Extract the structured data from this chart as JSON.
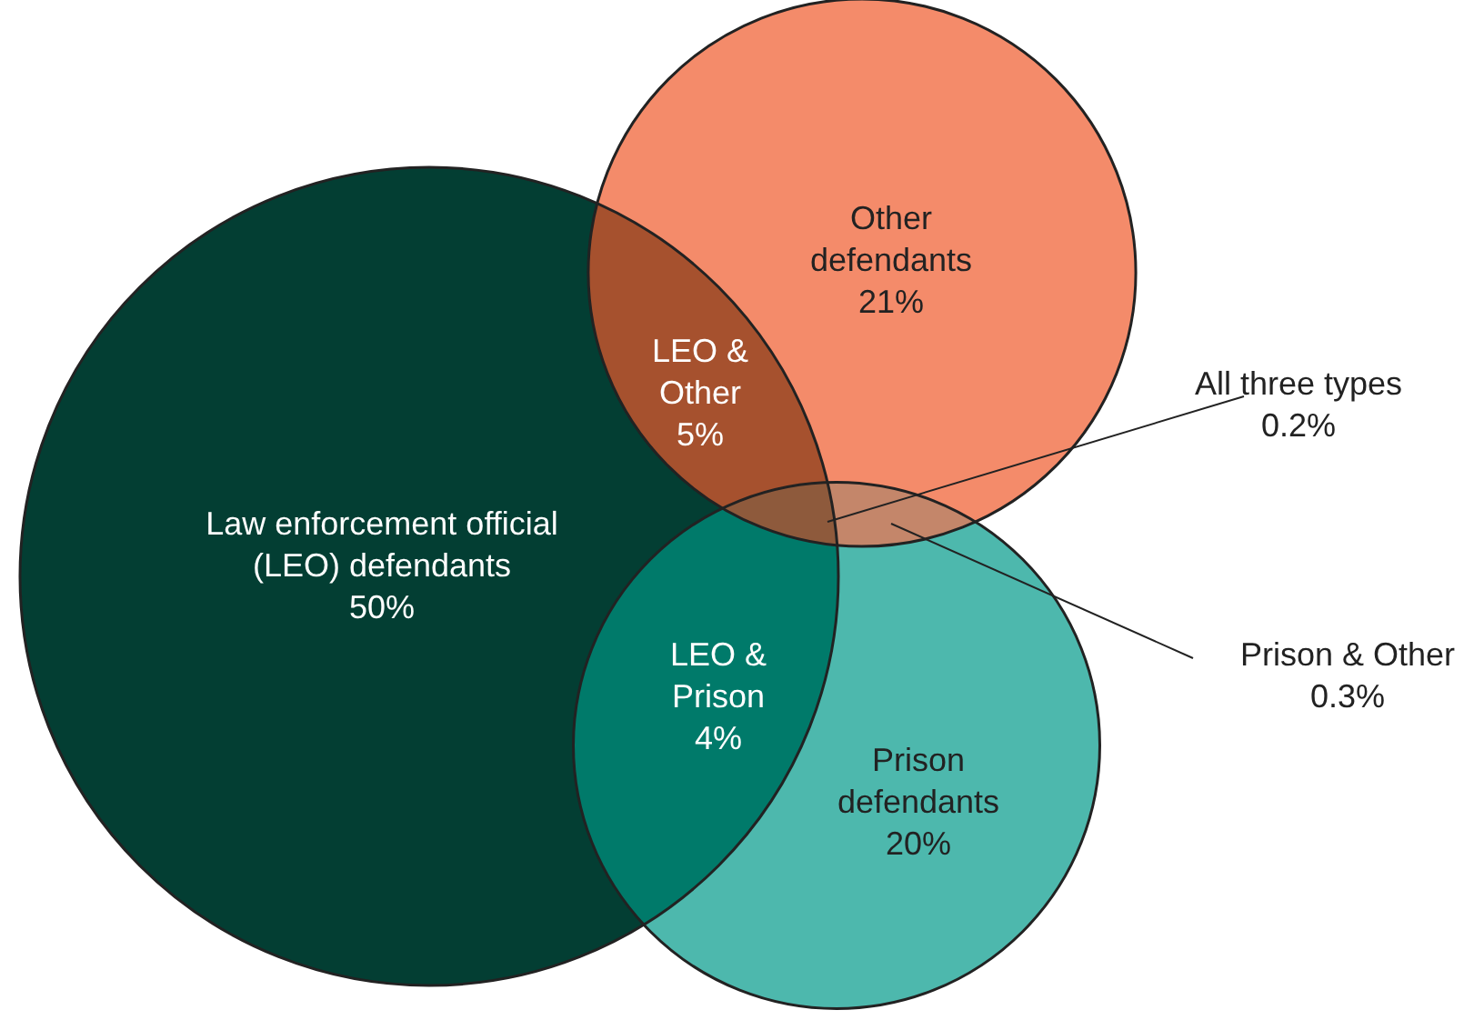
{
  "chart_data": {
    "type": "other",
    "categories": [
      "Law enforcement official\n(LEO) defendants",
      "Other\ndefendants",
      "Prison\ndefendants",
      "LEO &\nOther",
      "LEO &\nPrison",
      "Prison & Other",
      "All three types"
    ],
    "values": [
      50,
      21,
      20,
      5,
      4,
      0.3,
      0.2
    ],
    "value_labels": [
      "50%",
      "21%",
      "20%",
      "5%",
      "4%",
      "0.3%",
      "0.2%"
    ],
    "colors": [
      "#033e33",
      "#f48b6a",
      "#4db8ad",
      "#a6512e",
      "#007a6a",
      "#c4866a",
      "#8e5a3c"
    ]
  }
}
